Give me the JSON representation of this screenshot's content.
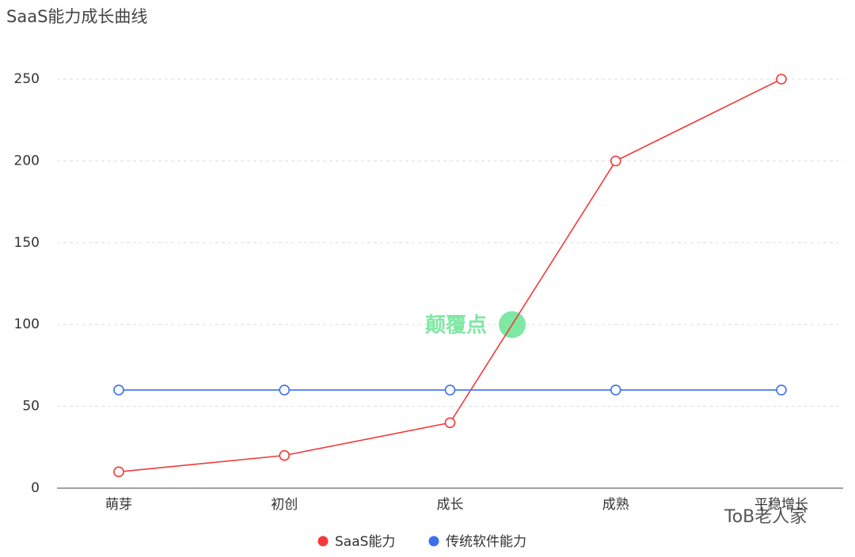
{
  "chart_data": {
    "type": "line",
    "title": "SaaS能力成长曲线",
    "categories": [
      "萌芽",
      "初创",
      "成长",
      "成熟",
      "平稳增长"
    ],
    "series": [
      {
        "name": "SaaS能力",
        "color": "#f23a3a",
        "values": [
          10,
          20,
          40,
          200,
          250
        ]
      },
      {
        "name": "传统软件能力",
        "color": "#3b6fef",
        "values": [
          60,
          60,
          60,
          60,
          60
        ]
      }
    ],
    "ylim": [
      0,
      250
    ],
    "yticks": [
      0,
      50,
      100,
      150,
      200,
      250
    ],
    "grid": true,
    "annotation": {
      "text": "颠覆点",
      "y": 100,
      "color": "#7ee8a4"
    },
    "watermark": "ToB老人家"
  }
}
